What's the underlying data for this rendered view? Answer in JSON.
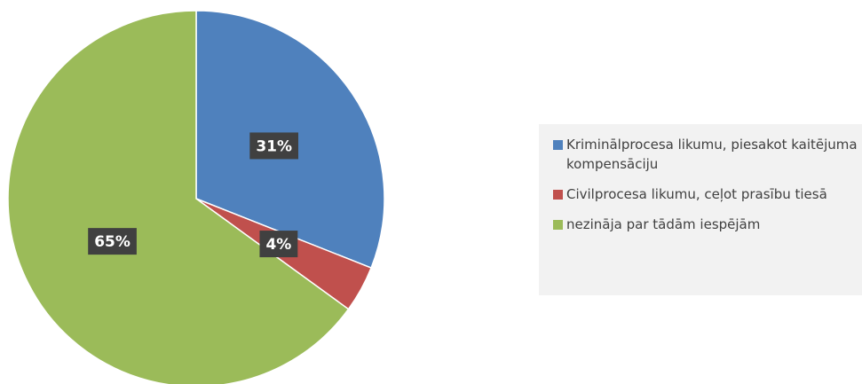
{
  "chart_data": {
    "type": "pie",
    "categories": [
      "Kriminālprocesa likumu, piesakot kaitējuma kompensāciju",
      "Civilprocesa likumu, ceļot prasību tiesā",
      "nezināja par tādām iespējām"
    ],
    "values": [
      31,
      4,
      65
    ],
    "value_labels": [
      "31%",
      "4%",
      "65%"
    ],
    "colors": [
      "#4f81bd",
      "#c0504d",
      "#9bbb59"
    ],
    "legend": "right"
  }
}
